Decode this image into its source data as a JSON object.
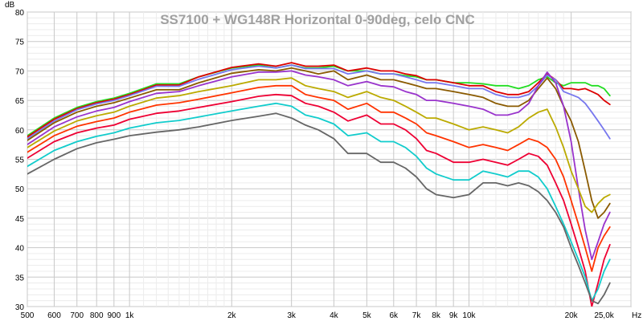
{
  "chart_data": {
    "type": "line",
    "title": "SS7100 + WG148R Horizontal 0-90deg, celo CNC",
    "ylabel": "dB",
    "x_unit_label": "Hz",
    "x_scale": "log",
    "xlim": [
      500,
      30000
    ],
    "ylim": [
      30,
      80
    ],
    "grid": true,
    "x_ticks": [
      {
        "value": 500,
        "label": "500"
      },
      {
        "value": 600,
        "label": "600"
      },
      {
        "value": 700,
        "label": "700"
      },
      {
        "value": 800,
        "label": "800"
      },
      {
        "value": 900,
        "label": "900"
      },
      {
        "value": 1000,
        "label": "1k"
      },
      {
        "value": 2000,
        "label": "2k"
      },
      {
        "value": 3000,
        "label": "3k"
      },
      {
        "value": 4000,
        "label": "4k"
      },
      {
        "value": 5000,
        "label": "5k"
      },
      {
        "value": 6000,
        "label": "6k"
      },
      {
        "value": 7000,
        "label": "7k"
      },
      {
        "value": 8000,
        "label": "8k"
      },
      {
        "value": 9000,
        "label": "9k"
      },
      {
        "value": 10000,
        "label": "10k"
      },
      {
        "value": 20000,
        "label": "20k"
      },
      {
        "value": 25000,
        "label": "25,0k"
      }
    ],
    "y_ticks": [
      30,
      35,
      40,
      45,
      50,
      55,
      60,
      65,
      70,
      75,
      80
    ],
    "series": [
      {
        "color": "#22dd22",
        "x": [
          500,
          600,
          700,
          800,
          900,
          1000,
          1200,
          1400,
          1600,
          2000,
          2400,
          2700,
          3000,
          3300,
          3600,
          4000,
          4400,
          5000,
          5500,
          6000,
          6500,
          7000,
          7500,
          8000,
          9000,
          10000,
          11000,
          12000,
          13000,
          14000,
          15000,
          16000,
          17000,
          18000,
          19000,
          20000,
          21000,
          22000,
          23000,
          24000,
          25000,
          26000
        ],
        "y": [
          59,
          62,
          63.8,
          64.8,
          65.4,
          66.2,
          67.8,
          67.8,
          69,
          70.5,
          71,
          70.5,
          71,
          70.5,
          70.5,
          70.8,
          70,
          70,
          69.5,
          69.5,
          69.2,
          69,
          68.5,
          68.5,
          68,
          68,
          67.8,
          67.5,
          67.5,
          67,
          67.5,
          68.5,
          69,
          68,
          67.5,
          68,
          68,
          68,
          67.5,
          67.5,
          67,
          65.8
        ]
      },
      {
        "color": "#dd0000",
        "x": [
          500,
          600,
          700,
          800,
          900,
          1000,
          1200,
          1400,
          1600,
          2000,
          2400,
          2700,
          3000,
          3300,
          3600,
          4000,
          4400,
          5000,
          5500,
          6000,
          6500,
          7000,
          7500,
          8000,
          9000,
          10000,
          11000,
          12000,
          13000,
          14000,
          15000,
          16000,
          17000,
          18000,
          19000,
          20000,
          21000,
          22000,
          23000,
          24000,
          25000,
          26000
        ],
        "y": [
          58.8,
          61.8,
          63.6,
          64.6,
          65.2,
          66,
          67.6,
          67.6,
          69,
          70.6,
          71.2,
          70.8,
          71.4,
          70.8,
          70.8,
          71,
          70,
          70.5,
          70,
          70,
          69.5,
          69.2,
          68.5,
          68.5,
          68,
          67.5,
          67.5,
          66.5,
          66,
          66,
          66.5,
          68,
          69.5,
          68.5,
          67,
          67,
          66.8,
          67,
          66.5,
          66,
          65,
          64.3
        ]
      },
      {
        "color": "#7777ee",
        "x": [
          500,
          600,
          700,
          800,
          900,
          1000,
          1200,
          1400,
          1600,
          2000,
          2400,
          2700,
          3000,
          3300,
          3600,
          4000,
          4400,
          5000,
          5500,
          6000,
          6500,
          7000,
          7500,
          8000,
          9000,
          10000,
          11000,
          12000,
          13000,
          14000,
          15000,
          16000,
          17000,
          18000,
          19000,
          20000,
          21000,
          22000,
          23000,
          24000,
          25000,
          26000
        ],
        "y": [
          58.5,
          61.5,
          63.4,
          64.4,
          65,
          65.8,
          67.4,
          67.4,
          68.6,
          70.2,
          70.8,
          70.5,
          71,
          70.4,
          70.4,
          70.4,
          69.5,
          70,
          69.5,
          69.5,
          69,
          68.5,
          68,
          68,
          67.5,
          67,
          67,
          66,
          65.5,
          65.5,
          66,
          67.5,
          69.3,
          68.5,
          66.5,
          66,
          65.5,
          64.5,
          63,
          61.5,
          60,
          58.5
        ]
      },
      {
        "color": "#8a5a00",
        "x": [
          500,
          600,
          700,
          800,
          900,
          1000,
          1200,
          1400,
          1600,
          2000,
          2400,
          2700,
          3000,
          3300,
          3600,
          4000,
          4400,
          5000,
          5500,
          6000,
          6500,
          7000,
          7500,
          8000,
          9000,
          10000,
          11000,
          12000,
          13000,
          14000,
          15000,
          16000,
          17000,
          18000,
          19000,
          20000,
          21000,
          22000,
          23000,
          24000,
          25000,
          26000
        ],
        "y": [
          58.2,
          61.2,
          63,
          64,
          64.6,
          65.4,
          66.8,
          66.8,
          68,
          69.6,
          70.2,
          70,
          70.5,
          70,
          69.5,
          70,
          68.5,
          69.3,
          68.5,
          68.5,
          68,
          67.5,
          67,
          67,
          66.5,
          66,
          65.5,
          64.5,
          64,
          64,
          65,
          67,
          68.8,
          67,
          64,
          61.5,
          58,
          53,
          48,
          45,
          46,
          47.5
        ]
      },
      {
        "color": "#9933cc",
        "x": [
          500,
          600,
          700,
          800,
          900,
          1000,
          1200,
          1400,
          1600,
          2000,
          2400,
          2700,
          3000,
          3300,
          3600,
          4000,
          4400,
          5000,
          5500,
          6000,
          6500,
          7000,
          7500,
          8000,
          9000,
          10000,
          11000,
          12000,
          13000,
          14000,
          15000,
          16000,
          17000,
          18000,
          19000,
          20000,
          21000,
          22000,
          23000,
          24000,
          25000,
          26000
        ],
        "y": [
          57.5,
          60.5,
          62.2,
          63.2,
          63.8,
          64.8,
          66.2,
          66.5,
          67.5,
          69,
          69.8,
          69.8,
          70,
          69.3,
          69,
          68.5,
          67.5,
          68.2,
          67.5,
          67.3,
          66.5,
          66,
          65,
          65,
          64.5,
          64,
          63.5,
          62.5,
          62.5,
          63,
          64.5,
          67.5,
          69.8,
          68,
          64,
          58,
          50,
          43,
          38,
          41,
          44,
          46
        ]
      },
      {
        "color": "#bbaa00",
        "x": [
          500,
          600,
          700,
          800,
          900,
          1000,
          1200,
          1400,
          1600,
          2000,
          2400,
          2700,
          3000,
          3300,
          3600,
          4000,
          4400,
          5000,
          5500,
          6000,
          6500,
          7000,
          7500,
          8000,
          9000,
          10000,
          11000,
          12000,
          13000,
          14000,
          15000,
          16000,
          17000,
          18000,
          19000,
          20000,
          21000,
          22000,
          23000,
          24000,
          25000,
          26000
        ],
        "y": [
          57,
          59.8,
          61.5,
          62.4,
          63,
          64,
          65.4,
          65.8,
          66.5,
          67.5,
          68.5,
          68.5,
          68.8,
          67.5,
          67,
          66.5,
          65.5,
          66.5,
          65.5,
          65,
          64,
          63,
          62,
          62,
          61,
          60,
          60.5,
          60,
          59.5,
          60.5,
          62,
          63,
          63.5,
          60.5,
          57,
          53,
          50,
          47,
          46,
          47.5,
          48.5,
          49
        ]
      },
      {
        "color": "#ff3300",
        "x": [
          500,
          600,
          700,
          800,
          900,
          1000,
          1200,
          1400,
          1600,
          2000,
          2400,
          2700,
          3000,
          3300,
          3600,
          4000,
          4400,
          5000,
          5500,
          6000,
          6500,
          7000,
          7500,
          8000,
          9000,
          10000,
          11000,
          12000,
          13000,
          14000,
          15000,
          16000,
          17000,
          18000,
          19000,
          20000,
          21000,
          22000,
          23000,
          24000,
          25000,
          26000
        ],
        "y": [
          56.2,
          59,
          60.6,
          61.4,
          62,
          63,
          64.2,
          64.6,
          65.2,
          66.3,
          67.2,
          67.5,
          67.5,
          66,
          65.5,
          65,
          63.5,
          64.5,
          63,
          63,
          62,
          61,
          59.5,
          59,
          58,
          57,
          57.5,
          57,
          56.5,
          57.5,
          58.5,
          58,
          57,
          55,
          52,
          48,
          44,
          40,
          36,
          40,
          42,
          43.5
        ]
      },
      {
        "color": "#ee0033",
        "x": [
          500,
          600,
          700,
          800,
          900,
          1000,
          1200,
          1400,
          1600,
          2000,
          2400,
          2700,
          3000,
          3300,
          3600,
          4000,
          4400,
          5000,
          5500,
          6000,
          6500,
          7000,
          7500,
          8000,
          9000,
          10000,
          11000,
          12000,
          13000,
          14000,
          15000,
          16000,
          17000,
          18000,
          19000,
          20000,
          21000,
          22000,
          23000,
          24000,
          25000,
          26000
        ],
        "y": [
          55.2,
          58,
          59.5,
          60.3,
          60.8,
          61.8,
          62.8,
          63.2,
          63.8,
          64.8,
          65.7,
          66,
          65.8,
          64.5,
          64,
          63,
          61.5,
          62.5,
          61,
          61,
          60,
          58.5,
          56.5,
          56,
          54.5,
          54.5,
          55,
          54.5,
          54,
          55,
          56,
          55.5,
          54,
          51,
          48,
          44,
          40,
          36,
          30,
          34,
          38,
          40.5
        ]
      },
      {
        "color": "#11cccc",
        "x": [
          500,
          600,
          700,
          800,
          900,
          1000,
          1200,
          1400,
          1600,
          2000,
          2400,
          2700,
          3000,
          3300,
          3600,
          4000,
          4400,
          5000,
          5500,
          6000,
          6500,
          7000,
          7500,
          8000,
          9000,
          10000,
          11000,
          12000,
          13000,
          14000,
          15000,
          16000,
          17000,
          18000,
          19000,
          20000,
          21000,
          22000,
          23000,
          24000,
          25000,
          26000
        ],
        "y": [
          53.8,
          56.5,
          58,
          58.9,
          59.5,
          60.3,
          61.2,
          61.6,
          62.2,
          63.2,
          64,
          64.5,
          64,
          62.5,
          62,
          61,
          59,
          59.5,
          58,
          58,
          57,
          55.5,
          53.5,
          52.5,
          51.5,
          51.5,
          53,
          52.5,
          52,
          53,
          53,
          52,
          50,
          47,
          44,
          41,
          38,
          35,
          31,
          33,
          36,
          38
        ]
      },
      {
        "color": "#666666",
        "x": [
          500,
          600,
          700,
          800,
          900,
          1000,
          1200,
          1400,
          1600,
          2000,
          2400,
          2700,
          3000,
          3300,
          3600,
          4000,
          4400,
          5000,
          5500,
          6000,
          6500,
          7000,
          7500,
          8000,
          9000,
          10000,
          11000,
          12000,
          13000,
          14000,
          15000,
          16000,
          17000,
          18000,
          19000,
          20000,
          21000,
          22000,
          23000,
          24000,
          25000,
          26000
        ],
        "y": [
          52.5,
          55,
          56.8,
          57.8,
          58.4,
          59,
          59.6,
          60,
          60.5,
          61.6,
          62.3,
          62.8,
          62,
          60.8,
          60,
          58.5,
          56,
          56,
          54.5,
          54.5,
          53.5,
          52,
          50,
          49,
          48.5,
          49,
          51,
          51,
          50.5,
          51,
          50.5,
          49.5,
          48,
          46,
          43.5,
          40,
          37,
          34,
          31,
          30.5,
          32,
          34
        ]
      }
    ]
  }
}
